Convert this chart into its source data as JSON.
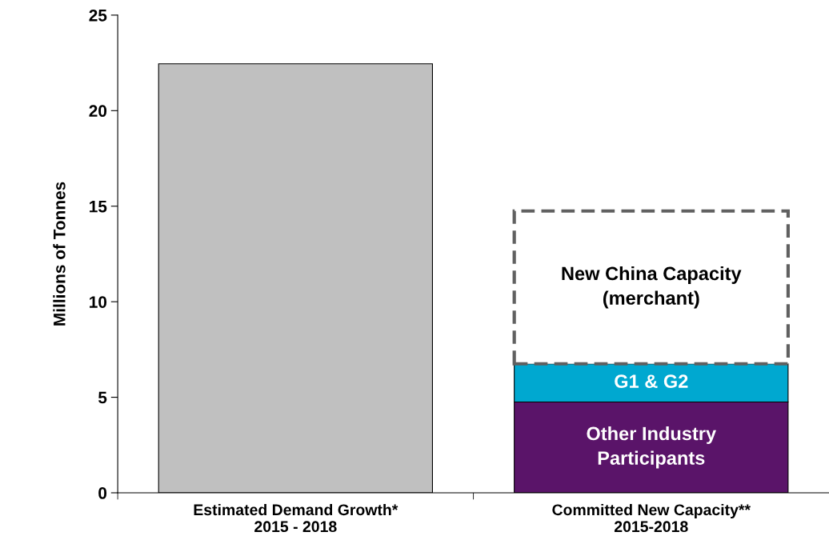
{
  "chart_data": {
    "type": "bar",
    "stacked": true,
    "ylabel": "Millions of Tonnes",
    "categories": [
      "Estimated Demand Growth*\n2015 - 2018",
      "Committed New Capacity**\n2015-2018"
    ],
    "series": [
      {
        "color": "#c0c0c0",
        "values": [
          22.45,
          null
        ]
      },
      {
        "name": "Other Industry\nParticipants",
        "color": "#5a1469",
        "values": [
          null,
          4.75
        ]
      },
      {
        "name": "G1 & G2",
        "color": "#00a8d0",
        "values": [
          null,
          2.0
        ]
      },
      {
        "name": "New China Capacity\n(merchant)",
        "color": "#ffffff",
        "line_style": "dashed",
        "values": [
          null,
          8.0
        ]
      }
    ],
    "ylim": [
      0,
      25
    ],
    "yticks": [
      0,
      5,
      10,
      15,
      20,
      25
    ],
    "grid": false,
    "legend": false
  }
}
